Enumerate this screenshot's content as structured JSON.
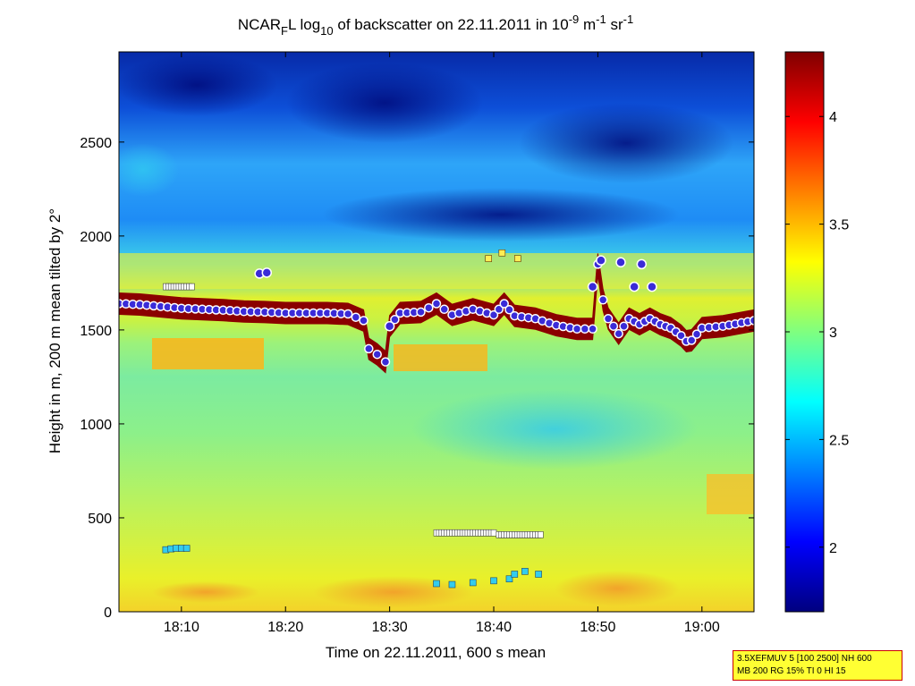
{
  "chart_data": {
    "type": "heatmap",
    "title": {
      "prefix": "NCAR",
      "sub1": "F",
      "mid1": "L log",
      "sub2": "10",
      "mid2": " of backscatter on 22.11.2011 in 10",
      "sup1": "-9",
      "mid3": " m",
      "sup2": "-1",
      "mid4": " sr",
      "sup3": "-1"
    },
    "xlabel": "Time on 22.11.2011, 600 s mean",
    "ylabel": "Height in m, 200 m mean tilted by 2°",
    "x_ticks": [
      "18:10",
      "18:20",
      "18:30",
      "18:40",
      "18:50",
      "19:00"
    ],
    "x_tick_minutes": [
      10,
      20,
      30,
      40,
      50,
      60
    ],
    "xlim_minutes_after_18h": [
      4,
      65
    ],
    "y_ticks": [
      0,
      500,
      1000,
      1500,
      2000,
      2500
    ],
    "ylim": [
      0,
      2980
    ],
    "colorbar": {
      "ticks": [
        2,
        2.5,
        3,
        3.5,
        4
      ],
      "range": [
        1.7,
        4.3
      ],
      "colormap": "jet"
    },
    "grid": false,
    "layer_line_series": [
      {
        "t": 4,
        "h": 1640
      },
      {
        "t": 6,
        "h": 1635
      },
      {
        "t": 8,
        "h": 1625
      },
      {
        "t": 10,
        "h": 1615
      },
      {
        "t": 12,
        "h": 1610
      },
      {
        "t": 14,
        "h": 1605
      },
      {
        "t": 16,
        "h": 1598
      },
      {
        "t": 18,
        "h": 1595
      },
      {
        "t": 20,
        "h": 1590
      },
      {
        "t": 22,
        "h": 1590
      },
      {
        "t": 24,
        "h": 1590
      },
      {
        "t": 26,
        "h": 1585
      },
      {
        "t": 27.5,
        "h": 1550
      },
      {
        "t": 28,
        "h": 1400
      },
      {
        "t": 28.8,
        "h": 1370
      },
      {
        "t": 29.6,
        "h": 1330
      },
      {
        "t": 30,
        "h": 1520
      },
      {
        "t": 31,
        "h": 1590
      },
      {
        "t": 33,
        "h": 1595
      },
      {
        "t": 34.5,
        "h": 1640
      },
      {
        "t": 36,
        "h": 1580
      },
      {
        "t": 38,
        "h": 1610
      },
      {
        "t": 40,
        "h": 1580
      },
      {
        "t": 41,
        "h": 1640
      },
      {
        "t": 42,
        "h": 1575
      },
      {
        "t": 44,
        "h": 1560
      },
      {
        "t": 46,
        "h": 1525
      },
      {
        "t": 48,
        "h": 1505
      },
      {
        "t": 49.5,
        "h": 1505
      },
      {
        "t": 50,
        "h": 1850
      },
      {
        "t": 50.5,
        "h": 1660
      },
      {
        "t": 51,
        "h": 1560
      },
      {
        "t": 52,
        "h": 1480
      },
      {
        "t": 53,
        "h": 1560
      },
      {
        "t": 54,
        "h": 1530
      },
      {
        "t": 55,
        "h": 1560
      },
      {
        "t": 56,
        "h": 1530
      },
      {
        "t": 57,
        "h": 1510
      },
      {
        "t": 58,
        "h": 1470
      },
      {
        "t": 58.5,
        "h": 1440
      },
      {
        "t": 59,
        "h": 1445
      },
      {
        "t": 60,
        "h": 1510
      },
      {
        "t": 62,
        "h": 1520
      },
      {
        "t": 65,
        "h": 1550
      }
    ],
    "extra_markers": [
      {
        "t": 17.5,
        "h": 1800
      },
      {
        "t": 18.2,
        "h": 1805
      },
      {
        "t": 30,
        "h": 1520
      },
      {
        "t": 49.5,
        "h": 1730
      },
      {
        "t": 50.3,
        "h": 1870
      },
      {
        "t": 52.2,
        "h": 1860
      },
      {
        "t": 53.5,
        "h": 1730
      },
      {
        "t": 54.2,
        "h": 1850
      },
      {
        "t": 55.2,
        "h": 1730
      }
    ],
    "white_square_series": [
      {
        "t_start": 8.5,
        "t_end": 11,
        "h": 1730
      },
      {
        "t_start": 34.5,
        "t_end": 40,
        "h": 420
      },
      {
        "t_start": 40.5,
        "t_end": 44.5,
        "h": 410
      }
    ],
    "cyan_square_series": [
      {
        "t": 8.5,
        "h": 330
      },
      {
        "t": 9,
        "h": 335
      },
      {
        "t": 9.5,
        "h": 338
      },
      {
        "t": 10,
        "h": 338
      },
      {
        "t": 10.5,
        "h": 338
      },
      {
        "t": 34.5,
        "h": 150
      },
      {
        "t": 36,
        "h": 145
      },
      {
        "t": 38,
        "h": 155
      },
      {
        "t": 40,
        "h": 165
      },
      {
        "t": 41.5,
        "h": 175
      },
      {
        "t": 42,
        "h": 200
      },
      {
        "t": 43,
        "h": 215
      },
      {
        "t": 44.3,
        "h": 200
      }
    ],
    "yellow_square_series": [
      {
        "t": 39.5,
        "h": 1880
      },
      {
        "t": 40.8,
        "h": 1910
      },
      {
        "t": 42.3,
        "h": 1880
      }
    ]
  },
  "info_box": {
    "line1": "3.5XEFMUV 5 [100 2500] NH 600",
    "line2": "MB 200 RG 15% TI 0 HI 15"
  },
  "colors": {
    "marker_fill": "#3a2bd8",
    "marker_edge": "#ffffff",
    "layer": "#8b0000",
    "box_fill": "#ffff33",
    "box_border": "#cc0000"
  }
}
